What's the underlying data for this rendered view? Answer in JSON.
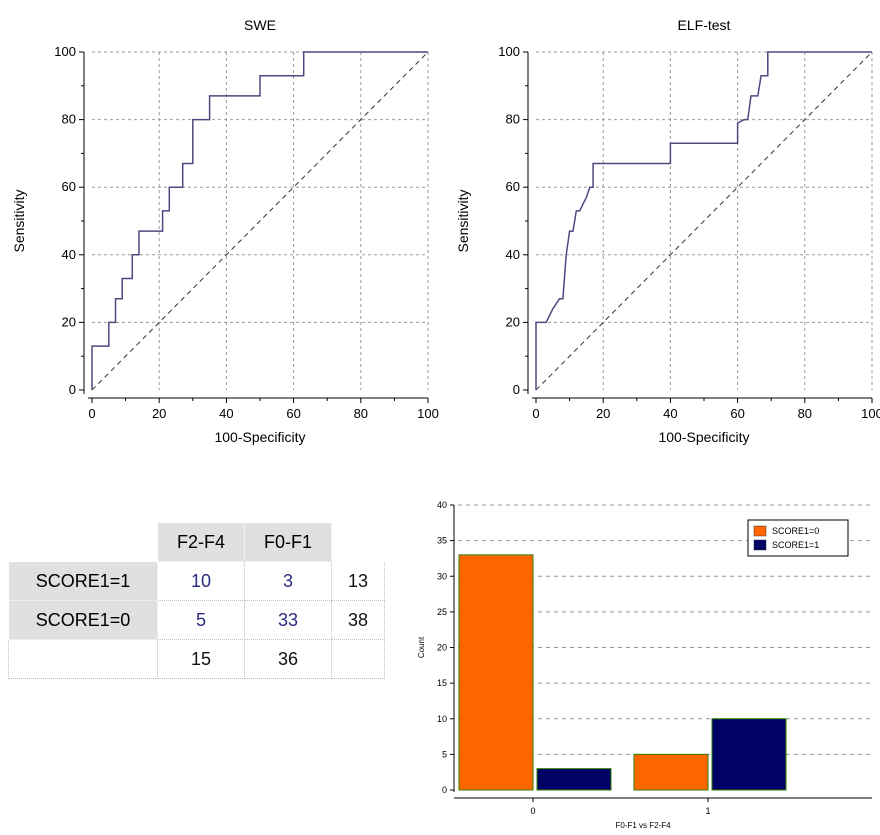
{
  "chart_data": [
    {
      "type": "line",
      "title": "SWE",
      "xlabel": "100-Specificity",
      "ylabel": "Sensitivity",
      "xlim": [
        0,
        100
      ],
      "ylim": [
        0,
        100
      ],
      "xticks": [
        "0",
        "20",
        "40",
        "60",
        "80",
        "100"
      ],
      "yticks": [
        "0",
        "20",
        "40",
        "60",
        "80",
        "100"
      ],
      "grid": true,
      "reference_line": "diagonal",
      "series": [
        {
          "x": [
            0,
            0,
            5,
            5,
            7,
            7,
            9,
            9,
            12,
            12,
            14,
            14,
            21,
            21,
            23,
            23,
            27,
            27,
            30,
            30,
            35,
            35,
            50,
            50,
            63,
            63,
            100
          ],
          "y": [
            0,
            13,
            13,
            20,
            20,
            27,
            27,
            33,
            33,
            40,
            40,
            47,
            47,
            53,
            53,
            60,
            60,
            67,
            67,
            80,
            80,
            87,
            87,
            93,
            93,
            100,
            100
          ]
        }
      ]
    },
    {
      "type": "line",
      "title": "ELF-test",
      "xlabel": "100-Specificity",
      "ylabel": "Sensitivity",
      "xlim": [
        0,
        100
      ],
      "ylim": [
        0,
        100
      ],
      "xticks": [
        "0",
        "20",
        "40",
        "60",
        "80",
        "100"
      ],
      "yticks": [
        "0",
        "20",
        "40",
        "60",
        "80",
        "100"
      ],
      "grid": true,
      "reference_line": "diagonal",
      "series": [
        {
          "x": [
            0,
            0,
            3,
            5,
            7,
            8,
            9,
            10,
            11,
            12,
            13,
            14,
            15,
            16,
            17,
            17,
            40,
            40,
            60,
            60,
            62,
            63,
            64,
            66,
            67,
            67,
            69,
            69,
            100
          ],
          "y": [
            0,
            20,
            20,
            24,
            27,
            27,
            40,
            47,
            47,
            53,
            53,
            55,
            57,
            60,
            60,
            67,
            67,
            73,
            73,
            79,
            80,
            80,
            87,
            87,
            93,
            93,
            93,
            100,
            100
          ]
        }
      ]
    },
    {
      "type": "bar",
      "categories": [
        "0",
        "1"
      ],
      "xlabel": "F0-F1 vs F2-F4",
      "ylabel": "Count",
      "ylim": [
        0,
        40
      ],
      "yticks": [
        "0",
        "5",
        "10",
        "15",
        "20",
        "25",
        "30",
        "35",
        "40"
      ],
      "grid": true,
      "legend": "top-right",
      "series": [
        {
          "name": "SCORE1=0",
          "values": [
            33,
            5
          ],
          "color": "#ff6600"
        },
        {
          "name": "SCORE1=1",
          "values": [
            3,
            10
          ],
          "color": "#000066"
        }
      ]
    }
  ],
  "table": {
    "col_headers": [
      "F2-F4",
      "F0-F1"
    ],
    "rows": [
      {
        "label": "SCORE1=1",
        "values": [
          "10",
          "3"
        ],
        "total": "13"
      },
      {
        "label": "SCORE1=0",
        "values": [
          "5",
          "33"
        ],
        "total": "38"
      }
    ],
    "col_totals": [
      "15",
      "36"
    ]
  },
  "colors": {
    "roc_line": "#4a4a80",
    "grid": "#999999",
    "bar_border": "#2e7d00"
  }
}
